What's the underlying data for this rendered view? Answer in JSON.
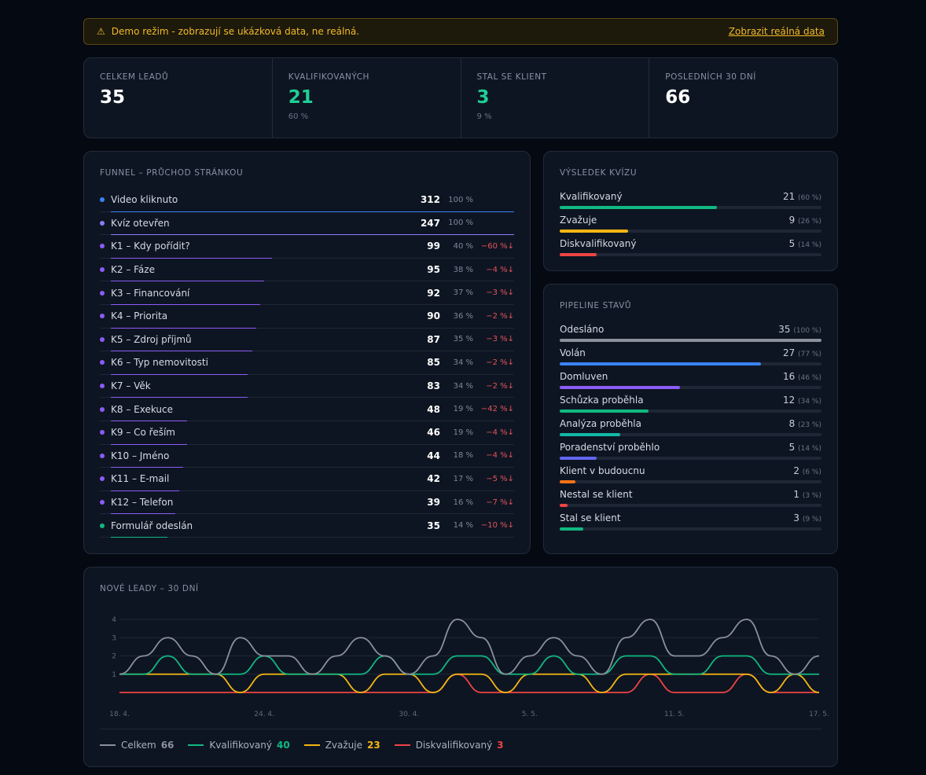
{
  "banner": {
    "icon": "warning-icon",
    "message": "Demo režim - zobrazují se ukázková data, ne reálná.",
    "link": "Zobrazit reálná data"
  },
  "stats": [
    {
      "label": "CELKEM LEADŮ",
      "value": "35",
      "sub": "",
      "color": "#ffffff"
    },
    {
      "label": "KVALIFIKOVANÝCH",
      "value": "21",
      "sub": "60 %",
      "color": "#1fcf93"
    },
    {
      "label": "STAL SE KLIENT",
      "value": "3",
      "sub": "9 %",
      "color": "#1fcf93"
    },
    {
      "label": "POSLEDNÍCH 30 DNÍ",
      "value": "66",
      "sub": "",
      "color": "#ffffff"
    }
  ],
  "funnel": {
    "title": "FUNNEL – PRŮCHOD STRÁNKOU",
    "rows": [
      {
        "name": "Video kliknuto",
        "count": "312",
        "pct": "100 %",
        "drop": "",
        "fraction": 1.0,
        "color": "#3b82f6"
      },
      {
        "name": "Kvíz otevřen",
        "count": "247",
        "pct": "100 %",
        "drop": "",
        "fraction": 1.0,
        "color": "#8b7cf6"
      },
      {
        "name": "K1 – Kdy pořídit?",
        "count": "99",
        "pct": "40 %",
        "drop": "−60 %↓",
        "fraction": 0.4,
        "color": "#8b5cf6"
      },
      {
        "name": "K2 – Fáze",
        "count": "95",
        "pct": "38 %",
        "drop": "−4 %↓",
        "fraction": 0.38,
        "color": "#8b5cf6"
      },
      {
        "name": "K3 – Financování",
        "count": "92",
        "pct": "37 %",
        "drop": "−3 %↓",
        "fraction": 0.37,
        "color": "#8b5cf6"
      },
      {
        "name": "K4 – Priorita",
        "count": "90",
        "pct": "36 %",
        "drop": "−2 %↓",
        "fraction": 0.36,
        "color": "#8b5cf6"
      },
      {
        "name": "K5 – Zdroj příjmů",
        "count": "87",
        "pct": "35 %",
        "drop": "−3 %↓",
        "fraction": 0.35,
        "color": "#8b5cf6"
      },
      {
        "name": "K6 – Typ nemovitosti",
        "count": "85",
        "pct": "34 %",
        "drop": "−2 %↓",
        "fraction": 0.34,
        "color": "#8b5cf6"
      },
      {
        "name": "K7 – Věk",
        "count": "83",
        "pct": "34 %",
        "drop": "−2 %↓",
        "fraction": 0.34,
        "color": "#8b5cf6"
      },
      {
        "name": "K8 – Exekuce",
        "count": "48",
        "pct": "19 %",
        "drop": "−42 %↓",
        "fraction": 0.19,
        "color": "#8b5cf6"
      },
      {
        "name": "K9 – Co řeším",
        "count": "46",
        "pct": "19 %",
        "drop": "−4 %↓",
        "fraction": 0.19,
        "color": "#8b5cf6"
      },
      {
        "name": "K10 – Jméno",
        "count": "44",
        "pct": "18 %",
        "drop": "−4 %↓",
        "fraction": 0.18,
        "color": "#8b5cf6"
      },
      {
        "name": "K11 – E-mail",
        "count": "42",
        "pct": "17 %",
        "drop": "−5 %↓",
        "fraction": 0.17,
        "color": "#8b5cf6"
      },
      {
        "name": "K12 – Telefon",
        "count": "39",
        "pct": "16 %",
        "drop": "−7 %↓",
        "fraction": 0.16,
        "color": "#8b5cf6"
      },
      {
        "name": "Formulář odeslán",
        "count": "35",
        "pct": "14 %",
        "drop": "−10 %↓",
        "fraction": 0.14,
        "color": "#10b981"
      }
    ]
  },
  "quiz": {
    "title": "VÝSLEDEK KVÍZU",
    "rows": [
      {
        "name": "Kvalifikovaný",
        "count": "21",
        "pct": "(60 %)",
        "fraction": 0.6,
        "color": "#10b981"
      },
      {
        "name": "Zvažuje",
        "count": "9",
        "pct": "(26 %)",
        "fraction": 0.26,
        "color": "#f5b714"
      },
      {
        "name": "Diskvalifikovaný",
        "count": "5",
        "pct": "(14 %)",
        "fraction": 0.14,
        "color": "#ef4444"
      }
    ]
  },
  "pipeline": {
    "title": "PIPELINE STAVŮ",
    "rows": [
      {
        "name": "Odesláno",
        "count": "35",
        "pct": "(100 %)",
        "fraction": 1.0,
        "color": "#8b919c"
      },
      {
        "name": "Volán",
        "count": "27",
        "pct": "(77 %)",
        "fraction": 0.77,
        "color": "#3b82f6"
      },
      {
        "name": "Domluven",
        "count": "16",
        "pct": "(46 %)",
        "fraction": 0.46,
        "color": "#8b5cf6"
      },
      {
        "name": "Schůzka proběhla",
        "count": "12",
        "pct": "(34 %)",
        "fraction": 0.34,
        "color": "#10b981"
      },
      {
        "name": "Analýza proběhla",
        "count": "8",
        "pct": "(23 %)",
        "fraction": 0.23,
        "color": "#14b8a6"
      },
      {
        "name": "Poradenství proběhlo",
        "count": "5",
        "pct": "(14 %)",
        "fraction": 0.14,
        "color": "#6366f1"
      },
      {
        "name": "Klient v budoucnu",
        "count": "2",
        "pct": "(6 %)",
        "fraction": 0.06,
        "color": "#f97316"
      },
      {
        "name": "Nestal se klient",
        "count": "1",
        "pct": "(3 %)",
        "fraction": 0.03,
        "color": "#ef4444"
      },
      {
        "name": "Stal se klient",
        "count": "3",
        "pct": "(9 %)",
        "fraction": 0.09,
        "color": "#10b981"
      }
    ]
  },
  "chart_data": {
    "type": "line",
    "title": "NOVÉ LEADY – 30 DNÍ",
    "x": [
      "18. 4.",
      "19. 4.",
      "20. 4.",
      "21. 4.",
      "22. 4.",
      "23. 4.",
      "24. 4.",
      "25. 4.",
      "26. 4.",
      "27. 4.",
      "28. 4.",
      "29. 4.",
      "30. 4.",
      "1. 5.",
      "2. 5.",
      "3. 5.",
      "4. 5.",
      "5. 5.",
      "6. 5.",
      "7. 5.",
      "8. 5.",
      "9. 5.",
      "10. 5.",
      "11. 5.",
      "12. 5.",
      "13. 5.",
      "14. 5.",
      "15. 5.",
      "16. 5.",
      "17. 5."
    ],
    "xticks": [
      "18. 4.",
      "24. 4.",
      "30. 4.",
      "5. 5.",
      "11. 5.",
      "17. 5."
    ],
    "yticks": [
      1,
      2,
      3,
      4
    ],
    "ylim": [
      0,
      4
    ],
    "grid": true,
    "legend": "bottom-left",
    "series": [
      {
        "name": "Celkem",
        "total": "66",
        "color": "#8b919c",
        "values": [
          1,
          2,
          3,
          2,
          1,
          3,
          2,
          2,
          1,
          2,
          3,
          2,
          1,
          2,
          4,
          3,
          1,
          2,
          3,
          2,
          1,
          3,
          4,
          2,
          2,
          3,
          4,
          2,
          1,
          2
        ]
      },
      {
        "name": "Kvalifikovaný",
        "total": "40",
        "color": "#10b981",
        "values": [
          1,
          1,
          2,
          1,
          1,
          1,
          2,
          1,
          1,
          1,
          1,
          2,
          1,
          1,
          2,
          2,
          1,
          1,
          2,
          1,
          1,
          2,
          2,
          1,
          1,
          2,
          2,
          1,
          1,
          1
        ]
      },
      {
        "name": "Zvažuje",
        "total": "23",
        "color": "#f5b714",
        "values": [
          1,
          1,
          1,
          1,
          1,
          0,
          1,
          1,
          1,
          1,
          0,
          1,
          1,
          0,
          1,
          1,
          0,
          1,
          1,
          1,
          0,
          1,
          1,
          1,
          1,
          1,
          1,
          0,
          1,
          0
        ]
      },
      {
        "name": "Diskvalifikovaný",
        "total": "3",
        "color": "#ef4444",
        "values": [
          0,
          0,
          0,
          0,
          0,
          0,
          0,
          0,
          0,
          0,
          0,
          0,
          0,
          0,
          1,
          0,
          0,
          0,
          0,
          0,
          0,
          0,
          1,
          0,
          0,
          0,
          1,
          0,
          0,
          0
        ]
      }
    ]
  }
}
